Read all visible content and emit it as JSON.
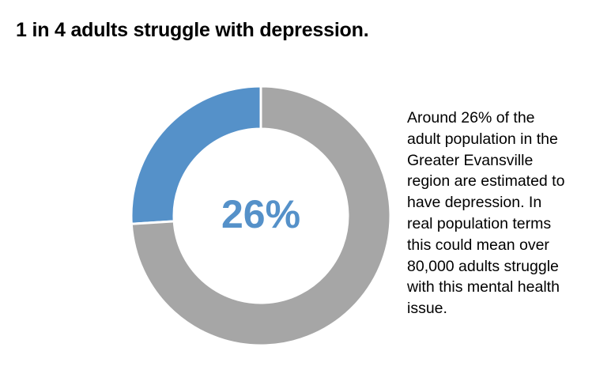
{
  "title": "1 in 4 adults struggle with depression.",
  "chart_data": {
    "type": "pie",
    "style": "donut",
    "title": "1 in 4 adults struggle with depression.",
    "center_label": "26%",
    "slices": [
      {
        "value": 26,
        "color": "#5591c9"
      },
      {
        "value": 74,
        "color": "#a6a6a6"
      }
    ]
  },
  "description": {
    "lines": [
      "Around 26% of the",
      "adult population in the",
      "Greater Evansville",
      "region are estimated to",
      "have depression. In",
      "real population terms",
      "this could mean over",
      "80,000 adults struggle",
      "with this mental health",
      "issue."
    ]
  },
  "colors": {
    "highlight": "#5591c9",
    "remainder": "#a6a6a6",
    "center_text": "#5591c9"
  }
}
